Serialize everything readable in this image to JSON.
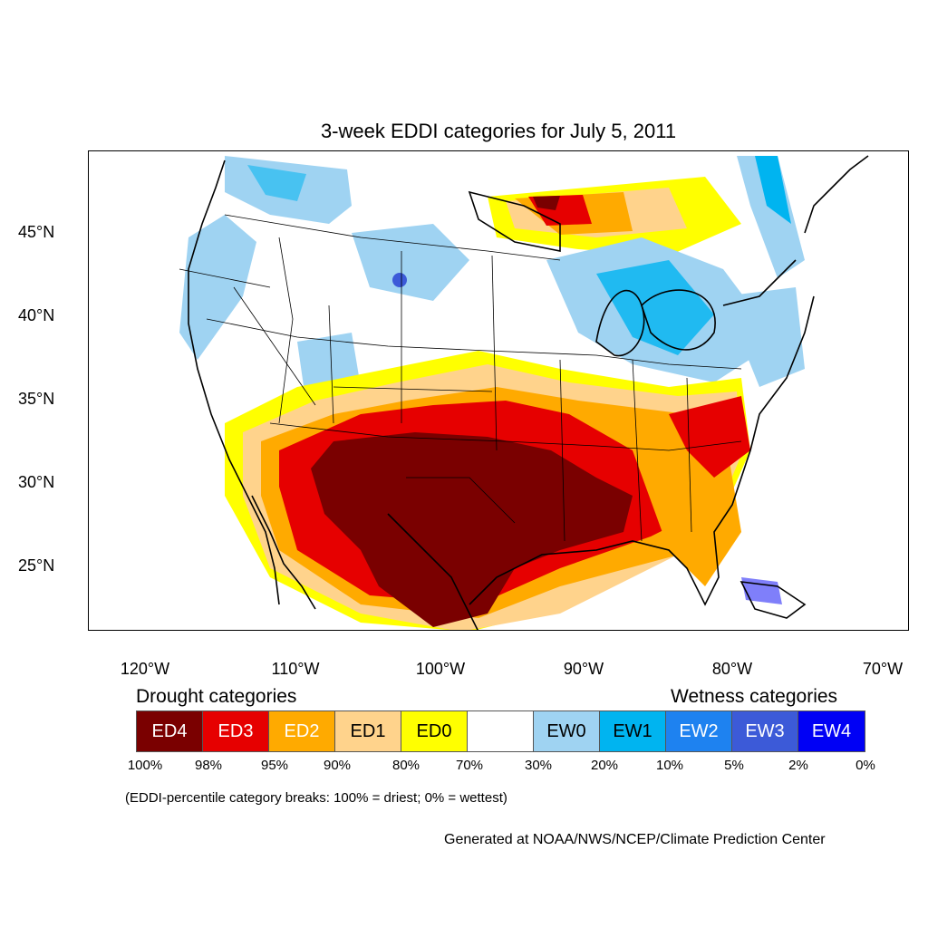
{
  "title": "3-week EDDI categories for July 5, 2011",
  "lat_labels": [
    "45°N",
    "40°N",
    "35°N",
    "30°N",
    "25°N"
  ],
  "lon_labels": [
    "120°W",
    "110°W",
    "100°W",
    "90°W",
    "80°W",
    "70°W"
  ],
  "drought_heading": "Drought categories",
  "wetness_heading": "Wetness categories",
  "legend": [
    {
      "label": "ED4",
      "color": "#7a0000",
      "text_color": "#ffffff"
    },
    {
      "label": "ED3",
      "color": "#e60000",
      "text_color": "#ffffff"
    },
    {
      "label": "ED2",
      "color": "#ffaa00",
      "text_color": "#ffffff"
    },
    {
      "label": "ED1",
      "color": "#ffd38c",
      "text_color": "#000000"
    },
    {
      "label": "ED0",
      "color": "#ffff00",
      "text_color": "#000000"
    },
    {
      "label": "",
      "color": "#ffffff",
      "text_color": "#000000"
    },
    {
      "label": "EW0",
      "color": "#9fd3f2",
      "text_color": "#000000"
    },
    {
      "label": "EW1",
      "color": "#00b4f0",
      "text_color": "#000000"
    },
    {
      "label": "EW2",
      "color": "#1e82f0",
      "text_color": "#ffffff"
    },
    {
      "label": "EW3",
      "color": "#3c5ad8",
      "text_color": "#ffffff"
    },
    {
      "label": "EW4",
      "color": "#0000f5",
      "text_color": "#ffffff"
    }
  ],
  "breaks": [
    "100%",
    "98%",
    "95%",
    "90%",
    "80%",
    "70%",
    "30%",
    "20%",
    "10%",
    "5%",
    "2%",
    "0%"
  ],
  "note": "(EDDI-percentile category breaks: 100% = driest; 0% = wettest)",
  "credit": "Generated at NOAA/NWS/NCEP/Climate Prediction Center"
}
